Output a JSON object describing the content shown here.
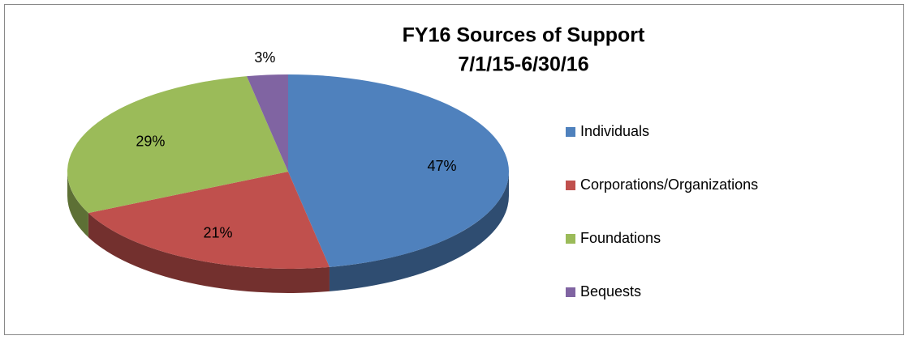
{
  "chart_data": {
    "type": "pie",
    "title": "FY16 Sources of Support",
    "subtitle": "7/1/15-6/30/16",
    "categories": [
      "Individuals",
      "Corporations/Organizations",
      "Foundations",
      "Bequests"
    ],
    "values": [
      47,
      21,
      29,
      3
    ],
    "value_labels": [
      "47%",
      "21%",
      "29%",
      "3%"
    ],
    "colors": [
      "#4f81bd",
      "#c0504d",
      "#9bbb59",
      "#8064a2"
    ],
    "legend": "right"
  }
}
